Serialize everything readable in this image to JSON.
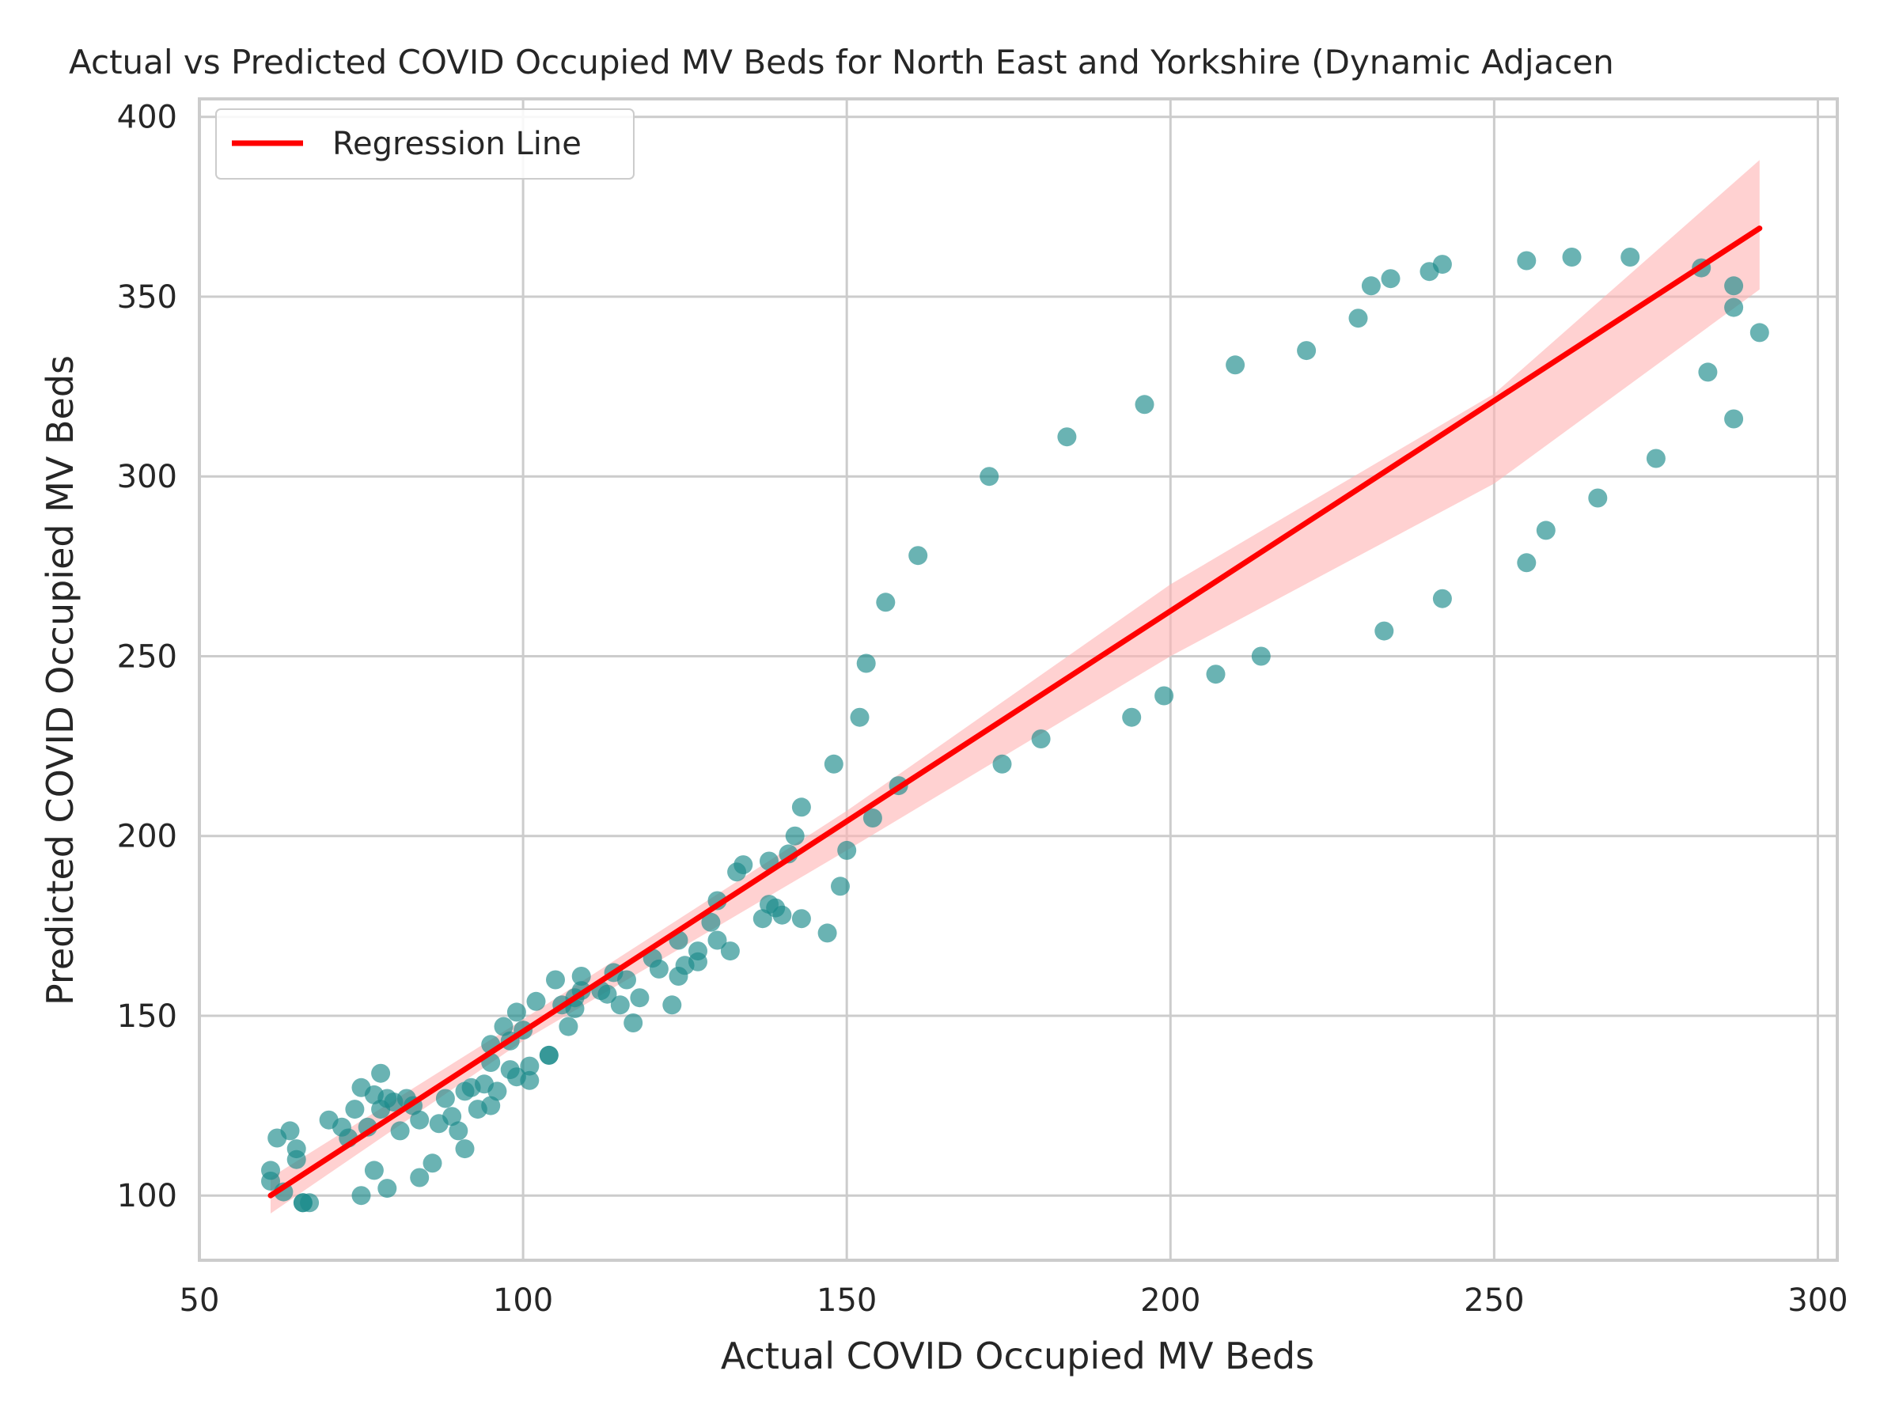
{
  "chart_data": {
    "type": "scatter",
    "title": "Actual vs Predicted COVID Occupied MV Beds for North East and Yorkshire (Dynamic Adjacen",
    "xlabel": "Actual COVID Occupied MV Beds",
    "ylabel": "Predicted COVID Occupied MV Beds",
    "xlim": [
      50,
      303
    ],
    "ylim": [
      82,
      405
    ],
    "xticks": [
      50,
      100,
      150,
      200,
      250,
      300
    ],
    "yticks": [
      100,
      150,
      200,
      250,
      300,
      350,
      400
    ],
    "grid": true,
    "legend": {
      "placement": "top-left",
      "entries": [
        "Regression Line"
      ]
    },
    "colors": {
      "points": "#1a8a8a",
      "regression": "#ff0000",
      "band": "#ffb3b3"
    },
    "regression_line": {
      "x": [
        61,
        291
      ],
      "y": [
        100,
        369
      ]
    },
    "confidence_band": {
      "x": [
        61,
        100,
        150,
        200,
        250,
        291
      ],
      "lower": [
        95,
        143,
        196,
        250,
        298,
        352
      ],
      "upper": [
        105,
        149,
        207,
        270,
        323,
        388
      ]
    },
    "points": [
      [
        61,
        104
      ],
      [
        61,
        107
      ],
      [
        62,
        116
      ],
      [
        63,
        101
      ],
      [
        64,
        118
      ],
      [
        65,
        113
      ],
      [
        65,
        110
      ],
      [
        66,
        98
      ],
      [
        66,
        98
      ],
      [
        67,
        98
      ],
      [
        70,
        121
      ],
      [
        72,
        119
      ],
      [
        73,
        116
      ],
      [
        74,
        124
      ],
      [
        75,
        130
      ],
      [
        75,
        100
      ],
      [
        76,
        119
      ],
      [
        77,
        107
      ],
      [
        77,
        128
      ],
      [
        78,
        134
      ],
      [
        78,
        124
      ],
      [
        79,
        102
      ],
      [
        79,
        127
      ],
      [
        80,
        126
      ],
      [
        81,
        118
      ],
      [
        82,
        127
      ],
      [
        83,
        125
      ],
      [
        84,
        121
      ],
      [
        84,
        105
      ],
      [
        86,
        109
      ],
      [
        87,
        120
      ],
      [
        88,
        127
      ],
      [
        89,
        122
      ],
      [
        90,
        118
      ],
      [
        91,
        113
      ],
      [
        91,
        129
      ],
      [
        92,
        130
      ],
      [
        93,
        124
      ],
      [
        94,
        131
      ],
      [
        95,
        142
      ],
      [
        95,
        125
      ],
      [
        95,
        137
      ],
      [
        96,
        129
      ],
      [
        97,
        147
      ],
      [
        98,
        143
      ],
      [
        98,
        135
      ],
      [
        99,
        151
      ],
      [
        99,
        133
      ],
      [
        100,
        146
      ],
      [
        101,
        132
      ],
      [
        101,
        136
      ],
      [
        102,
        154
      ],
      [
        104,
        139
      ],
      [
        104,
        139
      ],
      [
        105,
        160
      ],
      [
        106,
        153
      ],
      [
        107,
        147
      ],
      [
        108,
        155
      ],
      [
        108,
        152
      ],
      [
        109,
        157
      ],
      [
        109,
        161
      ],
      [
        112,
        157
      ],
      [
        113,
        156
      ],
      [
        114,
        162
      ],
      [
        115,
        153
      ],
      [
        116,
        160
      ],
      [
        117,
        148
      ],
      [
        118,
        155
      ],
      [
        120,
        166
      ],
      [
        121,
        163
      ],
      [
        123,
        153
      ],
      [
        124,
        161
      ],
      [
        124,
        171
      ],
      [
        125,
        164
      ],
      [
        127,
        165
      ],
      [
        127,
        168
      ],
      [
        129,
        176
      ],
      [
        130,
        171
      ],
      [
        130,
        182
      ],
      [
        132,
        168
      ],
      [
        133,
        190
      ],
      [
        134,
        192
      ],
      [
        137,
        177
      ],
      [
        138,
        193
      ],
      [
        138,
        181
      ],
      [
        139,
        180
      ],
      [
        140,
        178
      ],
      [
        141,
        195
      ],
      [
        142,
        200
      ],
      [
        143,
        177
      ],
      [
        143,
        208
      ],
      [
        147,
        173
      ],
      [
        148,
        220
      ],
      [
        149,
        186
      ],
      [
        150,
        196
      ],
      [
        152,
        233
      ],
      [
        153,
        248
      ],
      [
        154,
        205
      ],
      [
        156,
        265
      ],
      [
        158,
        214
      ],
      [
        161,
        278
      ],
      [
        172,
        300
      ],
      [
        174,
        220
      ],
      [
        180,
        227
      ],
      [
        184,
        311
      ],
      [
        194,
        233
      ],
      [
        196,
        320
      ],
      [
        199,
        239
      ],
      [
        207,
        245
      ],
      [
        210,
        331
      ],
      [
        214,
        250
      ],
      [
        221,
        335
      ],
      [
        229,
        344
      ],
      [
        231,
        353
      ],
      [
        233,
        257
      ],
      [
        234,
        355
      ],
      [
        240,
        357
      ],
      [
        242,
        266
      ],
      [
        242,
        359
      ],
      [
        255,
        276
      ],
      [
        255,
        360
      ],
      [
        258,
        285
      ],
      [
        262,
        361
      ],
      [
        266,
        294
      ],
      [
        271,
        361
      ],
      [
        275,
        305
      ],
      [
        282,
        358
      ],
      [
        283,
        329
      ],
      [
        287,
        347
      ],
      [
        287,
        353
      ],
      [
        287,
        316
      ],
      [
        291,
        340
      ]
    ]
  }
}
